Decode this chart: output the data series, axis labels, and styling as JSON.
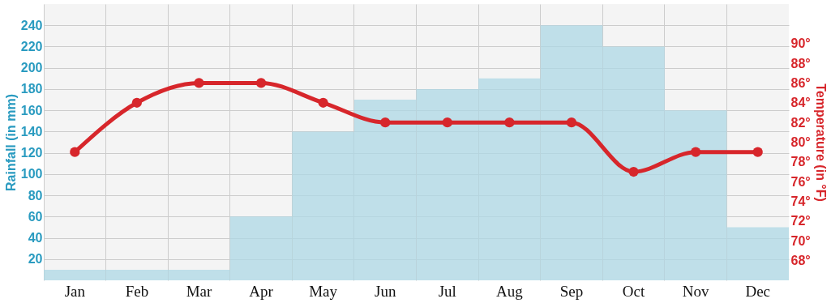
{
  "chart_data": {
    "type": "bar",
    "categories": [
      "Jan",
      "Feb",
      "Mar",
      "Apr",
      "May",
      "Jun",
      "Jul",
      "Aug",
      "Sep",
      "Oct",
      "Nov",
      "Dec"
    ],
    "ylabel": "Rainfall (in mm)",
    "y2label": "Temperature (in °F)",
    "ylim": [
      0,
      260
    ],
    "yticks": [
      20,
      40,
      60,
      80,
      100,
      120,
      140,
      160,
      180,
      200,
      220,
      240
    ],
    "y2lim": [
      66,
      94
    ],
    "y2ticks": [
      {
        "value": 68,
        "label": "68°"
      },
      {
        "value": 70,
        "label": "70°"
      },
      {
        "value": 72,
        "label": "72°"
      },
      {
        "value": 74,
        "label": "74°"
      },
      {
        "value": 76,
        "label": "76°"
      },
      {
        "value": 78,
        "label": "78°"
      },
      {
        "value": 80,
        "label": "80°"
      },
      {
        "value": 82,
        "label": "82°"
      },
      {
        "value": 84,
        "label": "84°"
      },
      {
        "value": 86,
        "label": "86°"
      },
      {
        "value": 88,
        "label": "88°"
      },
      {
        "value": 90,
        "label": "90°"
      }
    ],
    "grid": true,
    "marker": "circle",
    "series": [
      {
        "color": "#add8e6",
        "values": [
          10,
          10,
          10,
          60,
          140,
          170,
          180,
          190,
          240,
          220,
          160,
          50
        ]
      },
      {
        "type": "line",
        "axis": "y2",
        "color": "#d7262b",
        "values": [
          79,
          84,
          86,
          86,
          84,
          82,
          82,
          82,
          82,
          77,
          79,
          79
        ]
      }
    ]
  }
}
